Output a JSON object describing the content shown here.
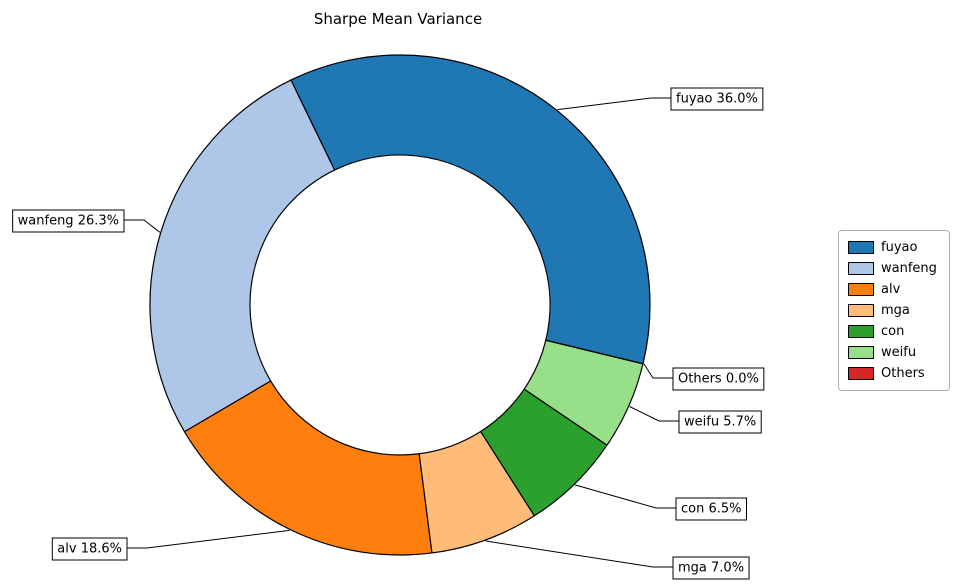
{
  "chart_data": {
    "type": "pie",
    "subtype": "donut",
    "title": "Sharpe Mean Variance",
    "units": "%",
    "series": [
      {
        "name": "fuyao",
        "value": 36.0,
        "label": "fuyao 36.0%",
        "color": "#1f77b4"
      },
      {
        "name": "wanfeng",
        "value": 26.3,
        "label": "wanfeng 26.3%",
        "color": "#aec7e8"
      },
      {
        "name": "alv",
        "value": 18.6,
        "label": "alv 18.6%",
        "color": "#ff7f0e"
      },
      {
        "name": "mga",
        "value": 7.0,
        "label": "mga 7.0%",
        "color": "#ffbb78"
      },
      {
        "name": "con",
        "value": 6.5,
        "label": "con 6.5%",
        "color": "#2ca02c"
      },
      {
        "name": "weifu",
        "value": 5.7,
        "label": "weifu 5.7%",
        "color": "#98df8a"
      },
      {
        "name": "Others",
        "value": 0.0,
        "label": "Others 0.0%",
        "color": "#d62728"
      }
    ],
    "legend": {
      "position": "right",
      "entries": [
        "fuyao",
        "wanfeng",
        "alv",
        "mga",
        "con",
        "weifu",
        "Others"
      ]
    },
    "start_angle_deg": -13.6,
    "direction": "counterclockwise",
    "donut_hole_ratio": 0.6,
    "edge_color": "#000000",
    "background": "#ffffff"
  }
}
